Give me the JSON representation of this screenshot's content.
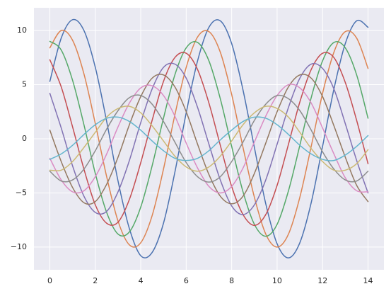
{
  "chart_data": {
    "type": "line",
    "grid": true,
    "background": "#eaeaf2",
    "grid_color": "#ffffff",
    "x": [
      0,
      0.5,
      1,
      1.5,
      2,
      2.5,
      3,
      3.5,
      4,
      4.5,
      5,
      5.5,
      6,
      6.5,
      7,
      7.5,
      8,
      8.5,
      9,
      9.5,
      10,
      10.5,
      11,
      11.5,
      12,
      12.5,
      13,
      13.5,
      14
    ],
    "xlim": [
      -0.7,
      14.7
    ],
    "ylim": [
      -12.1,
      12.1
    ],
    "xticks": [
      0,
      2,
      4,
      6,
      8,
      10,
      12,
      14
    ],
    "yticks": [
      {
        "value": -10,
        "label": "−10"
      },
      {
        "value": -5,
        "label": "−5"
      },
      0,
      5,
      10
    ],
    "series": [
      {
        "color": "#4c72b0",
        "values": [
          5.3,
          9.3,
          11.0,
          10.0,
          6.6,
          1.6,
          -3.9,
          -8.3,
          -10.8,
          -10.5,
          -7.8,
          -3.1,
          2.4,
          7.2,
          10.3,
          10.9,
          8.8,
          4.5,
          -0.8,
          -6.0,
          -9.7,
          -11.0,
          -9.6,
          -5.9,
          -0.7,
          4.6,
          8.8,
          10.9,
          10.3
        ]
      },
      {
        "color": "#dd8452",
        "values": [
          8.4,
          10.0,
          9.1,
          6.0,
          1.4,
          -3.5,
          -7.6,
          -9.8,
          -9.6,
          -7.1,
          -2.8,
          2.2,
          6.6,
          9.4,
          9.9,
          8.0,
          4.1,
          -0.8,
          -5.4,
          -8.8,
          -10.0,
          -8.8,
          -5.4,
          -0.7,
          4.2,
          8.0,
          9.9,
          9.3,
          6.5
        ]
      },
      {
        "color": "#55a868",
        "values": [
          9.0,
          8.2,
          5.4,
          1.3,
          -3.2,
          -6.8,
          -8.8,
          -8.6,
          -6.3,
          -2.5,
          1.9,
          5.9,
          8.4,
          8.9,
          7.2,
          3.7,
          -0.7,
          -4.9,
          -7.9,
          -9.0,
          -7.9,
          -4.8,
          -0.6,
          3.8,
          7.2,
          8.9,
          8.4,
          5.9,
          1.9
        ]
      },
      {
        "color": "#c44e52",
        "values": [
          7.3,
          4.8,
          1.1,
          -2.8,
          -6.1,
          -7.8,
          -7.7,
          -5.6,
          -2.2,
          1.7,
          5.3,
          7.5,
          7.9,
          6.4,
          3.3,
          -0.6,
          -4.4,
          -7.0,
          -8.0,
          -7.0,
          -4.3,
          -0.5,
          3.4,
          6.4,
          7.9,
          7.5,
          5.2,
          1.7,
          -2.3
        ]
      },
      {
        "color": "#8172b3",
        "values": [
          4.2,
          1.0,
          -2.5,
          -5.3,
          -6.8,
          -6.7,
          -4.9,
          -2.0,
          1.5,
          4.6,
          6.6,
          6.9,
          5.6,
          2.9,
          -0.5,
          -3.8,
          -6.2,
          -7.0,
          -6.1,
          -3.8,
          -0.5,
          2.9,
          5.6,
          6.9,
          6.5,
          4.6,
          1.4,
          -2.0,
          -5.0
        ]
      },
      {
        "color": "#937860",
        "values": [
          0.8,
          -2.1,
          -4.5,
          -5.9,
          -5.8,
          -4.2,
          -1.7,
          1.3,
          3.9,
          5.6,
          5.9,
          4.8,
          2.5,
          -0.5,
          -3.3,
          -5.3,
          -6.0,
          -5.3,
          -3.2,
          -0.4,
          2.5,
          4.8,
          5.9,
          5.6,
          3.9,
          1.2,
          -1.7,
          -4.3,
          -5.8
        ]
      },
      {
        "color": "#da8bc3",
        "values": [
          -1.8,
          -3.8,
          -4.9,
          -4.8,
          -3.5,
          -1.4,
          1.1,
          3.3,
          4.7,
          4.9,
          4.0,
          2.1,
          -0.4,
          -2.7,
          -4.4,
          -5.0,
          -4.4,
          -2.7,
          -0.3,
          2.1,
          4.0,
          5.0,
          4.7,
          3.3,
          1.0,
          -1.4,
          -3.6,
          -4.8,
          -4.9
        ]
      },
      {
        "color": "#8c8c8c",
        "values": [
          -3.0,
          -3.9,
          -3.8,
          -2.8,
          -1.1,
          0.9,
          2.6,
          3.8,
          4.0,
          3.2,
          1.6,
          -0.3,
          -2.2,
          -3.5,
          -4.0,
          -3.5,
          -2.1,
          -0.3,
          1.7,
          3.2,
          4.0,
          3.7,
          2.6,
          0.8,
          -1.2,
          -2.8,
          -3.8,
          -3.9,
          -3.0
        ]
      },
      {
        "color": "#ccb974",
        "values": [
          -2.9,
          -2.9,
          -2.1,
          -0.8,
          0.6,
          2.0,
          2.8,
          3.0,
          2.4,
          1.2,
          -0.2,
          -1.6,
          -2.6,
          -3.0,
          -2.6,
          -1.6,
          -0.2,
          1.3,
          2.4,
          3.0,
          2.8,
          2.0,
          0.6,
          -0.9,
          -2.1,
          -2.9,
          -2.9,
          -2.3,
          -1.0
        ]
      },
      {
        "color": "#64b5cd",
        "values": [
          -1.9,
          -1.4,
          -0.6,
          0.4,
          1.3,
          1.9,
          2.0,
          1.6,
          0.8,
          -0.2,
          -1.1,
          -1.8,
          -2.0,
          -1.8,
          -1.1,
          -0.1,
          0.8,
          1.6,
          2.0,
          1.9,
          1.3,
          0.4,
          -0.6,
          -1.4,
          -1.9,
          -2.0,
          -1.5,
          -0.7,
          0.3
        ]
      }
    ]
  }
}
